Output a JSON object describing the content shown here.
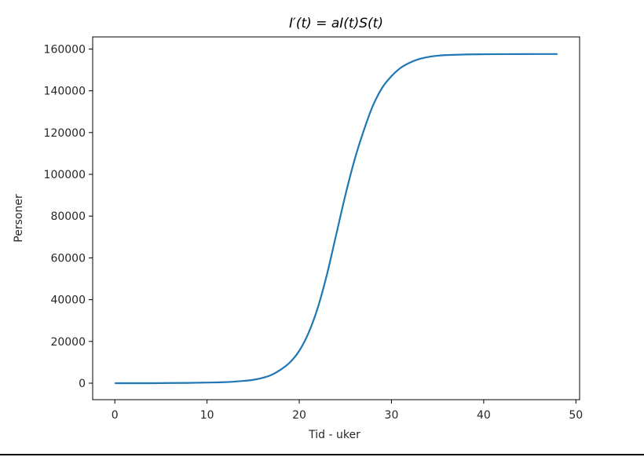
{
  "chart_data": {
    "type": "line",
    "title": "I′(t) = aI(t)S(t)",
    "xlabel": "Tid - uker",
    "ylabel": "Personer",
    "xlim": [
      -2.4,
      50.4
    ],
    "ylim": [
      -7900,
      165800
    ],
    "xticks": [
      0,
      10,
      20,
      30,
      40,
      50
    ],
    "yticks": [
      0,
      20000,
      40000,
      60000,
      80000,
      100000,
      120000,
      140000,
      160000
    ],
    "grid": false,
    "series": [
      {
        "color": "#1f77b4",
        "x": [
          0,
          2,
          4,
          6,
          8,
          10,
          12,
          14,
          15,
          16,
          17,
          18,
          19,
          20,
          21,
          22,
          23,
          24,
          25,
          26,
          27,
          28,
          29,
          30,
          31,
          32,
          33,
          34,
          35,
          36,
          38,
          40,
          42,
          44,
          46,
          48
        ],
        "values": [
          0,
          0,
          0,
          100,
          150,
          300,
          500,
          1100,
          1600,
          2500,
          4000,
          6500,
          10000,
          15500,
          24000,
          36000,
          52000,
          71000,
          90000,
          107000,
          121000,
          133000,
          141500,
          147000,
          151000,
          153500,
          155200,
          156200,
          156800,
          157100,
          157400,
          157500,
          157550,
          157580,
          157600,
          157600
        ]
      }
    ]
  }
}
